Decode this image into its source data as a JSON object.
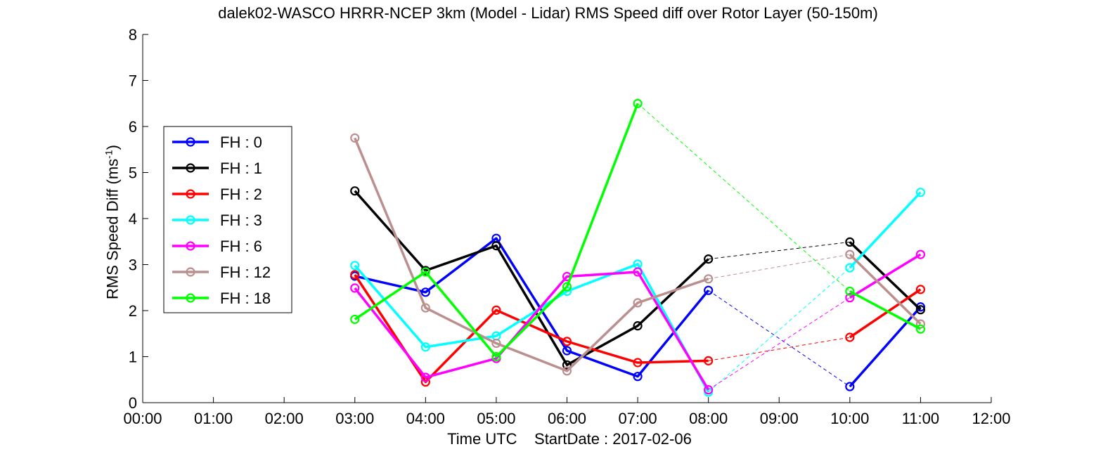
{
  "chart_data": {
    "type": "line",
    "title": "dalek02-WASCO HRRR-NCEP 3km (Model - Lidar) RMS Speed diff over Rotor Layer (50-150m)",
    "xlabel": "Time UTC    StartDate : 2017-02-06",
    "ylabel": "RMS Speed Diff (ms",
    "ylabel_sup": "-1",
    "ylabel_end": ")",
    "x_ticks": [
      "00:00",
      "01:00",
      "02:00",
      "03:00",
      "04:00",
      "05:00",
      "06:00",
      "07:00",
      "08:00",
      "09:00",
      "10:00",
      "11:00",
      "12:00"
    ],
    "y_ticks": [
      "0",
      "1",
      "2",
      "3",
      "4",
      "5",
      "6",
      "7",
      "8"
    ],
    "xlim": [
      0,
      12
    ],
    "ylim": [
      0,
      8
    ],
    "grid": false,
    "legend_position": "left",
    "x_hours": [
      3,
      4,
      5,
      6,
      7,
      8,
      10,
      11
    ],
    "series": [
      {
        "name": "FH : 0",
        "color": "#0000ff",
        "values": [
          2.75,
          2.4,
          3.57,
          1.13,
          0.57,
          2.44,
          0.35,
          2.08
        ]
      },
      {
        "name": "FH : 1",
        "color": "#000000",
        "values": [
          4.6,
          2.87,
          3.41,
          0.82,
          1.67,
          3.12,
          3.49,
          2.02
        ]
      },
      {
        "name": "FH : 2",
        "color": "#ff0000",
        "values": [
          2.78,
          0.45,
          2.01,
          1.33,
          0.87,
          0.91,
          1.42,
          2.46
        ]
      },
      {
        "name": "FH : 3",
        "color": "#00ffff",
        "values": [
          2.98,
          1.21,
          1.45,
          2.42,
          3.01,
          0.23,
          2.93,
          4.57
        ]
      },
      {
        "name": "FH : 6",
        "color": "#ff00ff",
        "values": [
          2.49,
          0.55,
          0.96,
          2.74,
          2.84,
          0.28,
          2.28,
          3.22
        ]
      },
      {
        "name": "FH : 12",
        "color": "#bc8f8f",
        "values": [
          5.75,
          2.06,
          1.29,
          0.69,
          2.17,
          2.69,
          3.22,
          1.71
        ]
      },
      {
        "name": "FH : 18",
        "color": "#00ff00",
        "values": [
          1.81,
          2.84,
          1.0,
          2.52,
          6.5,
          null,
          2.42,
          1.6
        ]
      }
    ]
  }
}
